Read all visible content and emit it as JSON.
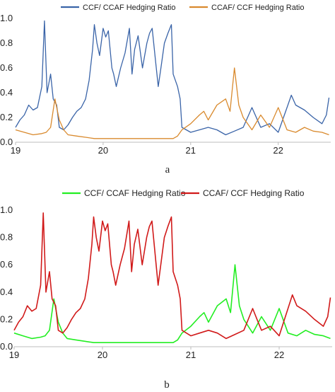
{
  "chart_data": [
    {
      "type": "line",
      "panel_label": "a",
      "y_ticks": [
        "0.0",
        "0.2",
        "0.4",
        "0.6",
        "0.8",
        "1.0"
      ],
      "x_ticks": [
        "19",
        "20",
        "21",
        "22"
      ],
      "ylim": [
        0,
        1.0
      ],
      "xlim": [
        19.0,
        22.6
      ],
      "legend": "top",
      "series": [
        {
          "name": "CCF/ CCAF Hedging Ratio",
          "color": "#3a64a8",
          "points": [
            [
              19.0,
              0.12
            ],
            [
              19.05,
              0.18
            ],
            [
              19.1,
              0.22
            ],
            [
              19.15,
              0.3
            ],
            [
              19.2,
              0.26
            ],
            [
              19.25,
              0.28
            ],
            [
              19.3,
              0.45
            ],
            [
              19.33,
              0.98
            ],
            [
              19.36,
              0.4
            ],
            [
              19.4,
              0.55
            ],
            [
              19.43,
              0.35
            ],
            [
              19.47,
              0.3
            ],
            [
              19.5,
              0.12
            ],
            [
              19.55,
              0.1
            ],
            [
              19.6,
              0.14
            ],
            [
              19.65,
              0.2
            ],
            [
              19.7,
              0.25
            ],
            [
              19.75,
              0.28
            ],
            [
              19.8,
              0.35
            ],
            [
              19.84,
              0.5
            ],
            [
              19.88,
              0.75
            ],
            [
              19.9,
              0.95
            ],
            [
              19.93,
              0.8
            ],
            [
              19.96,
              0.7
            ],
            [
              20.0,
              0.92
            ],
            [
              20.03,
              0.85
            ],
            [
              20.06,
              0.9
            ],
            [
              20.1,
              0.6
            ],
            [
              20.12,
              0.55
            ],
            [
              20.15,
              0.45
            ],
            [
              20.2,
              0.6
            ],
            [
              20.25,
              0.72
            ],
            [
              20.3,
              0.92
            ],
            [
              20.33,
              0.55
            ],
            [
              20.36,
              0.75
            ],
            [
              20.4,
              0.86
            ],
            [
              20.45,
              0.6
            ],
            [
              20.5,
              0.8
            ],
            [
              20.53,
              0.88
            ],
            [
              20.56,
              0.92
            ],
            [
              20.6,
              0.65
            ],
            [
              20.63,
              0.45
            ],
            [
              20.66,
              0.6
            ],
            [
              20.7,
              0.8
            ],
            [
              20.74,
              0.88
            ],
            [
              20.78,
              0.95
            ],
            [
              20.8,
              0.55
            ],
            [
              20.85,
              0.45
            ],
            [
              20.88,
              0.35
            ],
            [
              20.9,
              0.12
            ],
            [
              21.0,
              0.08
            ],
            [
              21.1,
              0.1
            ],
            [
              21.2,
              0.12
            ],
            [
              21.3,
              0.1
            ],
            [
              21.4,
              0.06
            ],
            [
              21.5,
              0.09
            ],
            [
              21.6,
              0.12
            ],
            [
              21.7,
              0.28
            ],
            [
              21.75,
              0.2
            ],
            [
              21.8,
              0.12
            ],
            [
              21.9,
              0.15
            ],
            [
              22.0,
              0.08
            ],
            [
              22.1,
              0.28
            ],
            [
              22.15,
              0.38
            ],
            [
              22.2,
              0.3
            ],
            [
              22.3,
              0.26
            ],
            [
              22.4,
              0.2
            ],
            [
              22.5,
              0.15
            ],
            [
              22.55,
              0.22
            ],
            [
              22.58,
              0.36
            ]
          ]
        },
        {
          "name": "CCAF/ CCF Hedging Ratio",
          "color": "#d98a2e",
          "points": [
            [
              19.0,
              0.1
            ],
            [
              19.1,
              0.08
            ],
            [
              19.2,
              0.06
            ],
            [
              19.3,
              0.07
            ],
            [
              19.35,
              0.08
            ],
            [
              19.4,
              0.12
            ],
            [
              19.45,
              0.35
            ],
            [
              19.5,
              0.18
            ],
            [
              19.55,
              0.1
            ],
            [
              19.6,
              0.06
            ],
            [
              19.7,
              0.05
            ],
            [
              19.8,
              0.04
            ],
            [
              19.9,
              0.03
            ],
            [
              20.0,
              0.03
            ],
            [
              20.2,
              0.03
            ],
            [
              20.4,
              0.03
            ],
            [
              20.6,
              0.03
            ],
            [
              20.8,
              0.03
            ],
            [
              20.85,
              0.05
            ],
            [
              20.9,
              0.1
            ],
            [
              21.0,
              0.15
            ],
            [
              21.1,
              0.22
            ],
            [
              21.15,
              0.25
            ],
            [
              21.2,
              0.18
            ],
            [
              21.3,
              0.3
            ],
            [
              21.4,
              0.35
            ],
            [
              21.45,
              0.25
            ],
            [
              21.5,
              0.6
            ],
            [
              21.55,
              0.3
            ],
            [
              21.6,
              0.2
            ],
            [
              21.7,
              0.1
            ],
            [
              21.8,
              0.22
            ],
            [
              21.9,
              0.12
            ],
            [
              22.0,
              0.28
            ],
            [
              22.1,
              0.1
            ],
            [
              22.2,
              0.08
            ],
            [
              22.3,
              0.12
            ],
            [
              22.4,
              0.09
            ],
            [
              22.5,
              0.08
            ],
            [
              22.58,
              0.06
            ]
          ]
        }
      ]
    },
    {
      "type": "line",
      "panel_label": "b",
      "y_ticks": [
        "0.0",
        "0.2",
        "0.4",
        "0.6",
        "0.8",
        "1.0"
      ],
      "x_ticks": [
        "19",
        "20",
        "21",
        "22"
      ],
      "ylim": [
        0,
        1.0
      ],
      "xlim": [
        19.0,
        22.6
      ],
      "legend": "top",
      "series": [
        {
          "name": "CCF/ CCAF Hedging Ratio",
          "color": "#22ee22",
          "points": [
            [
              19.0,
              0.1
            ],
            [
              19.1,
              0.08
            ],
            [
              19.2,
              0.06
            ],
            [
              19.3,
              0.07
            ],
            [
              19.35,
              0.08
            ],
            [
              19.4,
              0.12
            ],
            [
              19.45,
              0.35
            ],
            [
              19.5,
              0.18
            ],
            [
              19.55,
              0.1
            ],
            [
              19.6,
              0.06
            ],
            [
              19.7,
              0.05
            ],
            [
              19.8,
              0.04
            ],
            [
              19.9,
              0.03
            ],
            [
              20.0,
              0.03
            ],
            [
              20.2,
              0.03
            ],
            [
              20.4,
              0.03
            ],
            [
              20.6,
              0.03
            ],
            [
              20.8,
              0.03
            ],
            [
              20.85,
              0.05
            ],
            [
              20.9,
              0.1
            ],
            [
              21.0,
              0.15
            ],
            [
              21.1,
              0.22
            ],
            [
              21.15,
              0.25
            ],
            [
              21.2,
              0.18
            ],
            [
              21.3,
              0.3
            ],
            [
              21.4,
              0.35
            ],
            [
              21.45,
              0.25
            ],
            [
              21.5,
              0.6
            ],
            [
              21.55,
              0.3
            ],
            [
              21.6,
              0.2
            ],
            [
              21.7,
              0.1
            ],
            [
              21.8,
              0.22
            ],
            [
              21.9,
              0.12
            ],
            [
              22.0,
              0.28
            ],
            [
              22.1,
              0.1
            ],
            [
              22.2,
              0.08
            ],
            [
              22.3,
              0.12
            ],
            [
              22.4,
              0.09
            ],
            [
              22.5,
              0.08
            ],
            [
              22.58,
              0.06
            ]
          ]
        },
        {
          "name": "CCAF/ CCF Hedging Ratio",
          "color": "#d11a1a",
          "points": [
            [
              19.0,
              0.12
            ],
            [
              19.05,
              0.18
            ],
            [
              19.1,
              0.22
            ],
            [
              19.15,
              0.3
            ],
            [
              19.2,
              0.26
            ],
            [
              19.25,
              0.28
            ],
            [
              19.3,
              0.45
            ],
            [
              19.33,
              0.98
            ],
            [
              19.36,
              0.4
            ],
            [
              19.4,
              0.55
            ],
            [
              19.43,
              0.35
            ],
            [
              19.47,
              0.3
            ],
            [
              19.5,
              0.12
            ],
            [
              19.55,
              0.1
            ],
            [
              19.6,
              0.14
            ],
            [
              19.65,
              0.2
            ],
            [
              19.7,
              0.25
            ],
            [
              19.75,
              0.28
            ],
            [
              19.8,
              0.35
            ],
            [
              19.84,
              0.5
            ],
            [
              19.88,
              0.75
            ],
            [
              19.9,
              0.95
            ],
            [
              19.93,
              0.8
            ],
            [
              19.96,
              0.7
            ],
            [
              20.0,
              0.92
            ],
            [
              20.03,
              0.85
            ],
            [
              20.06,
              0.9
            ],
            [
              20.1,
              0.6
            ],
            [
              20.12,
              0.55
            ],
            [
              20.15,
              0.45
            ],
            [
              20.2,
              0.6
            ],
            [
              20.25,
              0.72
            ],
            [
              20.3,
              0.92
            ],
            [
              20.33,
              0.55
            ],
            [
              20.36,
              0.75
            ],
            [
              20.4,
              0.86
            ],
            [
              20.45,
              0.6
            ],
            [
              20.5,
              0.8
            ],
            [
              20.53,
              0.88
            ],
            [
              20.56,
              0.92
            ],
            [
              20.6,
              0.65
            ],
            [
              20.63,
              0.45
            ],
            [
              20.66,
              0.6
            ],
            [
              20.7,
              0.8
            ],
            [
              20.74,
              0.88
            ],
            [
              20.78,
              0.95
            ],
            [
              20.8,
              0.55
            ],
            [
              20.85,
              0.45
            ],
            [
              20.88,
              0.35
            ],
            [
              20.9,
              0.12
            ],
            [
              21.0,
              0.08
            ],
            [
              21.1,
              0.1
            ],
            [
              21.2,
              0.12
            ],
            [
              21.3,
              0.1
            ],
            [
              21.4,
              0.06
            ],
            [
              21.5,
              0.09
            ],
            [
              21.6,
              0.12
            ],
            [
              21.7,
              0.28
            ],
            [
              21.75,
              0.2
            ],
            [
              21.8,
              0.12
            ],
            [
              21.9,
              0.15
            ],
            [
              22.0,
              0.08
            ],
            [
              22.1,
              0.28
            ],
            [
              22.15,
              0.38
            ],
            [
              22.2,
              0.3
            ],
            [
              22.3,
              0.26
            ],
            [
              22.4,
              0.2
            ],
            [
              22.5,
              0.15
            ],
            [
              22.55,
              0.22
            ],
            [
              22.58,
              0.36
            ]
          ]
        }
      ]
    }
  ]
}
